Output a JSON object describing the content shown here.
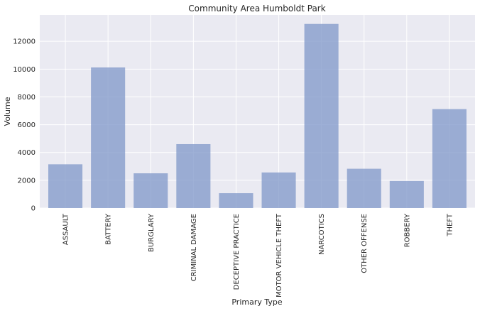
{
  "chart_data": {
    "type": "bar",
    "title": "Community Area Humboldt Park",
    "xlabel": "Primary Type",
    "ylabel": "Volume",
    "categories": [
      "ASSAULT",
      "BATTERY",
      "BURGLARY",
      "CRIMINAL DAMAGE",
      "DECEPTIVE PRACTICE",
      "MOTOR VEHICLE THEFT",
      "NARCOTICS",
      "OTHER OFFENSE",
      "ROBBERY",
      "THEFT"
    ],
    "values": [
      3150,
      10120,
      2500,
      4600,
      1070,
      2560,
      13250,
      2830,
      1950,
      7120
    ],
    "yticks": [
      0,
      2000,
      4000,
      6000,
      8000,
      10000,
      12000
    ],
    "ylim": [
      0,
      13900
    ],
    "grid": true,
    "bar_color": "#7f97c8",
    "background_color": "#eaeaf2"
  }
}
